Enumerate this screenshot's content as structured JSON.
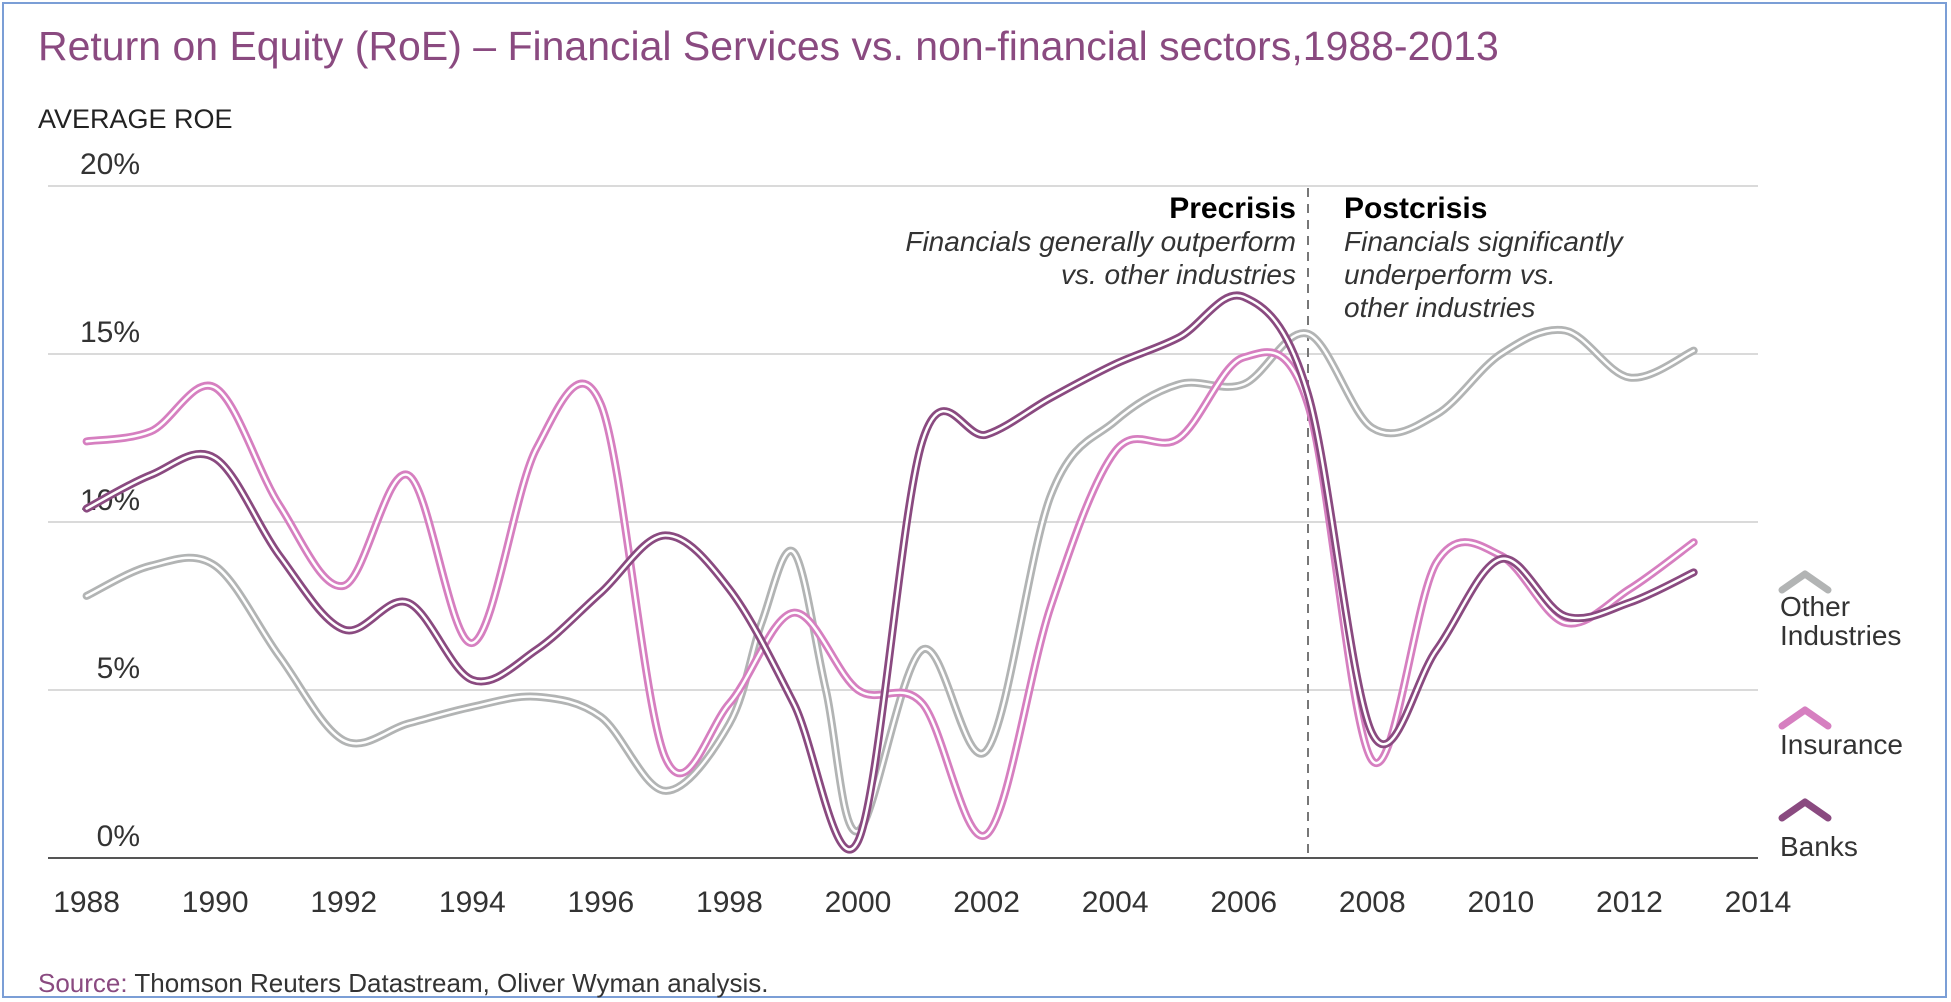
{
  "chart_data": {
    "type": "line",
    "title": "Return on Equity (RoE) – Financial Services vs. non-financial sectors,1988-2013",
    "ylabel": "AVERAGE ROE",
    "xlabel": "",
    "xlim": [
      1987.4,
      2014
    ],
    "ylim": [
      0,
      20
    ],
    "x_ticks": [
      "1988",
      "1990",
      "1992",
      "1994",
      "1996",
      "1998",
      "2000",
      "2002",
      "2004",
      "2006",
      "2008",
      "2010",
      "2012",
      "2014"
    ],
    "y_ticks": [
      {
        "value": 0,
        "label": "0%"
      },
      {
        "value": 5,
        "label": "5%"
      },
      {
        "value": 10,
        "label": "10%"
      },
      {
        "value": 15,
        "label": "15%"
      },
      {
        "value": 20,
        "label": "20%"
      }
    ],
    "grid": true,
    "series": [
      {
        "name": "Other Industries",
        "color": "#b2b4b4",
        "points": [
          [
            1988,
            7.8
          ],
          [
            1989,
            8.7
          ],
          [
            1990,
            8.7
          ],
          [
            1991,
            6.0
          ],
          [
            1992,
            3.5
          ],
          [
            1993,
            4.0
          ],
          [
            1994,
            4.5
          ],
          [
            1995,
            4.8
          ],
          [
            1996,
            4.2
          ],
          [
            1997,
            2.0
          ],
          [
            1998,
            4.0
          ],
          [
            1998.5,
            7.0
          ],
          [
            1999,
            9.1
          ],
          [
            1999.5,
            5.0
          ],
          [
            2000,
            0.8
          ],
          [
            2001,
            6.2
          ],
          [
            2002,
            3.2
          ],
          [
            2003,
            10.8
          ],
          [
            2004,
            13.0
          ],
          [
            2005,
            14.1
          ],
          [
            2006,
            14.1
          ],
          [
            2007,
            15.6
          ],
          [
            2008,
            12.8
          ],
          [
            2009,
            13.2
          ],
          [
            2010,
            15.0
          ],
          [
            2011,
            15.7
          ],
          [
            2012,
            14.3
          ],
          [
            2013,
            15.1
          ]
        ]
      },
      {
        "name": "Insurance",
        "color": "#d67fc0",
        "points": [
          [
            1988,
            12.4
          ],
          [
            1989,
            12.7
          ],
          [
            1990,
            14.0
          ],
          [
            1991,
            10.5
          ],
          [
            1992,
            8.1
          ],
          [
            1993,
            11.4
          ],
          [
            1994,
            6.4
          ],
          [
            1995,
            12.2
          ],
          [
            1996,
            13.5
          ],
          [
            1997,
            3.0
          ],
          [
            1998,
            4.6
          ],
          [
            1999,
            7.3
          ],
          [
            2000,
            5.0
          ],
          [
            2001,
            4.6
          ],
          [
            2002,
            0.7
          ],
          [
            2003,
            7.5
          ],
          [
            2004,
            12.1
          ],
          [
            2005,
            12.5
          ],
          [
            2006,
            14.9
          ],
          [
            2007,
            13.5
          ],
          [
            2008,
            2.9
          ],
          [
            2009,
            8.8
          ],
          [
            2010,
            9.0
          ],
          [
            2011,
            7.0
          ],
          [
            2012,
            8.0
          ],
          [
            2013,
            9.4
          ]
        ]
      },
      {
        "name": "Banks",
        "color": "#8a4a80",
        "points": [
          [
            1988,
            10.4
          ],
          [
            1989,
            11.4
          ],
          [
            1990,
            11.9
          ],
          [
            1991,
            9.0
          ],
          [
            1992,
            6.8
          ],
          [
            1993,
            7.6
          ],
          [
            1994,
            5.3
          ],
          [
            1995,
            6.2
          ],
          [
            1996,
            7.9
          ],
          [
            1997,
            9.6
          ],
          [
            1998,
            8.0
          ],
          [
            1999,
            4.6
          ],
          [
            2000,
            0.5
          ],
          [
            2001,
            12.4
          ],
          [
            2002,
            12.6
          ],
          [
            2003,
            13.7
          ],
          [
            2004,
            14.7
          ],
          [
            2005,
            15.5
          ],
          [
            2006,
            16.7
          ],
          [
            2007,
            13.8
          ],
          [
            2008,
            3.7
          ],
          [
            2009,
            6.2
          ],
          [
            2010,
            8.9
          ],
          [
            2011,
            7.2
          ],
          [
            2012,
            7.6
          ],
          [
            2013,
            8.5
          ]
        ]
      }
    ],
    "divider_year": 2007,
    "annotations": {
      "precrisis_title": "Precrisis",
      "precrisis_line1": "Financials generally outperform",
      "precrisis_line2": "vs. other industries",
      "postcrisis_title": "Postcrisis",
      "postcrisis_line1": "Financials significantly",
      "postcrisis_line2": "underperform vs.",
      "postcrisis_line3": "other industries"
    },
    "legend": {
      "placement": "right",
      "other_line1": "Other",
      "other_line2": "Industries",
      "insurance": "Insurance",
      "banks": "Banks"
    },
    "source_label": "Source:",
    "source_text": " Thomson Reuters Datastream, Oliver Wyman analysis.",
    "colors": {
      "title": "#8a4a80",
      "source_label": "#8a4a80",
      "grid": "#dadada",
      "axis": "#555555",
      "divider": "#777777"
    }
  }
}
